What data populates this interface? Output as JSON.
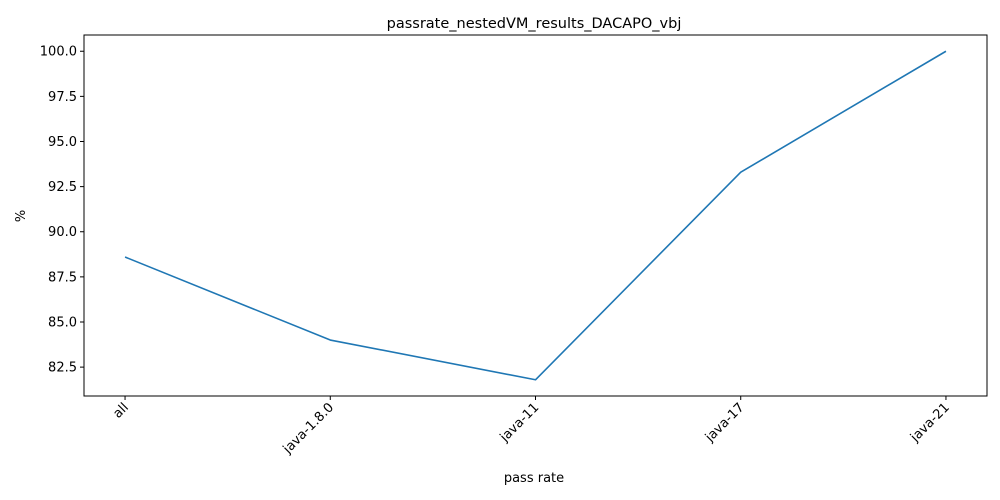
{
  "chart_data": {
    "type": "line",
    "title": "passrate_nestedVM_results_DACAPO_vbj",
    "xlabel": "pass rate",
    "ylabel": "%",
    "categories": [
      "all",
      "java-1.8.0",
      "java-11",
      "java-17",
      "java-21"
    ],
    "series": [
      {
        "values": [
          88.6,
          84.0,
          81.8,
          93.3,
          100.0
        ],
        "color": "#1f77b4"
      }
    ],
    "ylim": [
      80.9,
      100.9
    ],
    "yticks": [
      82.5,
      85.0,
      87.5,
      90.0,
      92.5,
      95.0,
      97.5,
      100.0
    ],
    "ytick_labels": [
      "82.5",
      "85.0",
      "87.5",
      "90.0",
      "92.5",
      "95.0",
      "97.5",
      "100.0"
    ],
    "grid": false,
    "legend": "none",
    "xtick_rotation": 45
  }
}
